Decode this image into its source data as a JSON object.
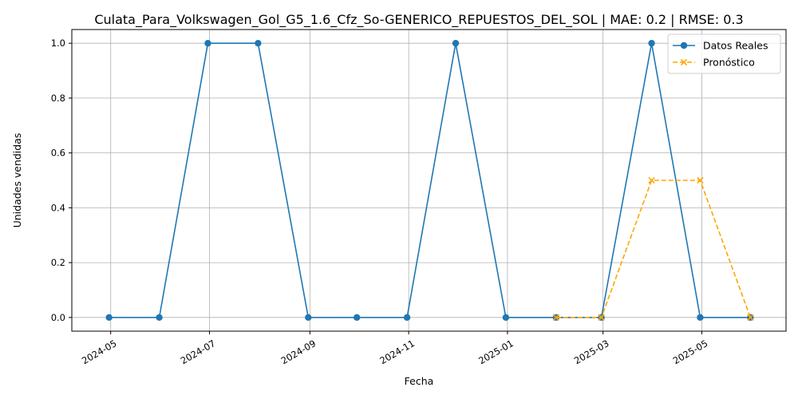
{
  "chart_data": {
    "type": "line",
    "title": "Culata_Para_Volkswagen_Gol_G5_1.6_Cfz_So-GENERICO_REPUESTOS_DEL_SOL | MAE: 0.2 | RMSE: 0.3",
    "xlabel": "Fecha",
    "ylabel": "Unidades vendidas",
    "x_type": "date",
    "xlim": [
      "2024-04-07",
      "2025-06-22"
    ],
    "ylim": [
      -0.05,
      1.05
    ],
    "x_ticks": [
      "2024-05-01",
      "2024-07-01",
      "2024-09-01",
      "2024-11-01",
      "2025-01-01",
      "2025-03-01",
      "2025-05-01"
    ],
    "x_tick_labels": [
      "2024-05",
      "2024-07",
      "2024-09",
      "2024-11",
      "2025-01",
      "2025-03",
      "2025-05"
    ],
    "y_ticks": [
      0.0,
      0.2,
      0.4,
      0.6,
      0.8,
      1.0
    ],
    "y_tick_labels": [
      "0.0",
      "0.2",
      "0.4",
      "0.6",
      "0.8",
      "1.0"
    ],
    "grid": true,
    "legend_position": "top-right",
    "series": [
      {
        "name": "Datos Reales",
        "color": "#1f77b4",
        "marker": "circle",
        "line_style": "solid",
        "x": [
          "2024-04-30",
          "2024-05-31",
          "2024-06-30",
          "2024-07-31",
          "2024-08-31",
          "2024-09-30",
          "2024-10-31",
          "2024-11-30",
          "2024-12-31",
          "2025-01-31",
          "2025-02-28",
          "2025-03-31",
          "2025-04-30",
          "2025-05-31"
        ],
        "y": [
          0,
          0,
          1,
          1,
          0,
          0,
          0,
          1,
          0,
          0,
          0,
          1,
          0,
          0
        ]
      },
      {
        "name": "Pronóstico",
        "color": "#ffa500",
        "marker": "x",
        "line_style": "dashed",
        "x": [
          "2025-01-31",
          "2025-02-28",
          "2025-03-31",
          "2025-04-30",
          "2025-05-31"
        ],
        "y": [
          0,
          0,
          0.5,
          0.5,
          0
        ]
      }
    ]
  }
}
